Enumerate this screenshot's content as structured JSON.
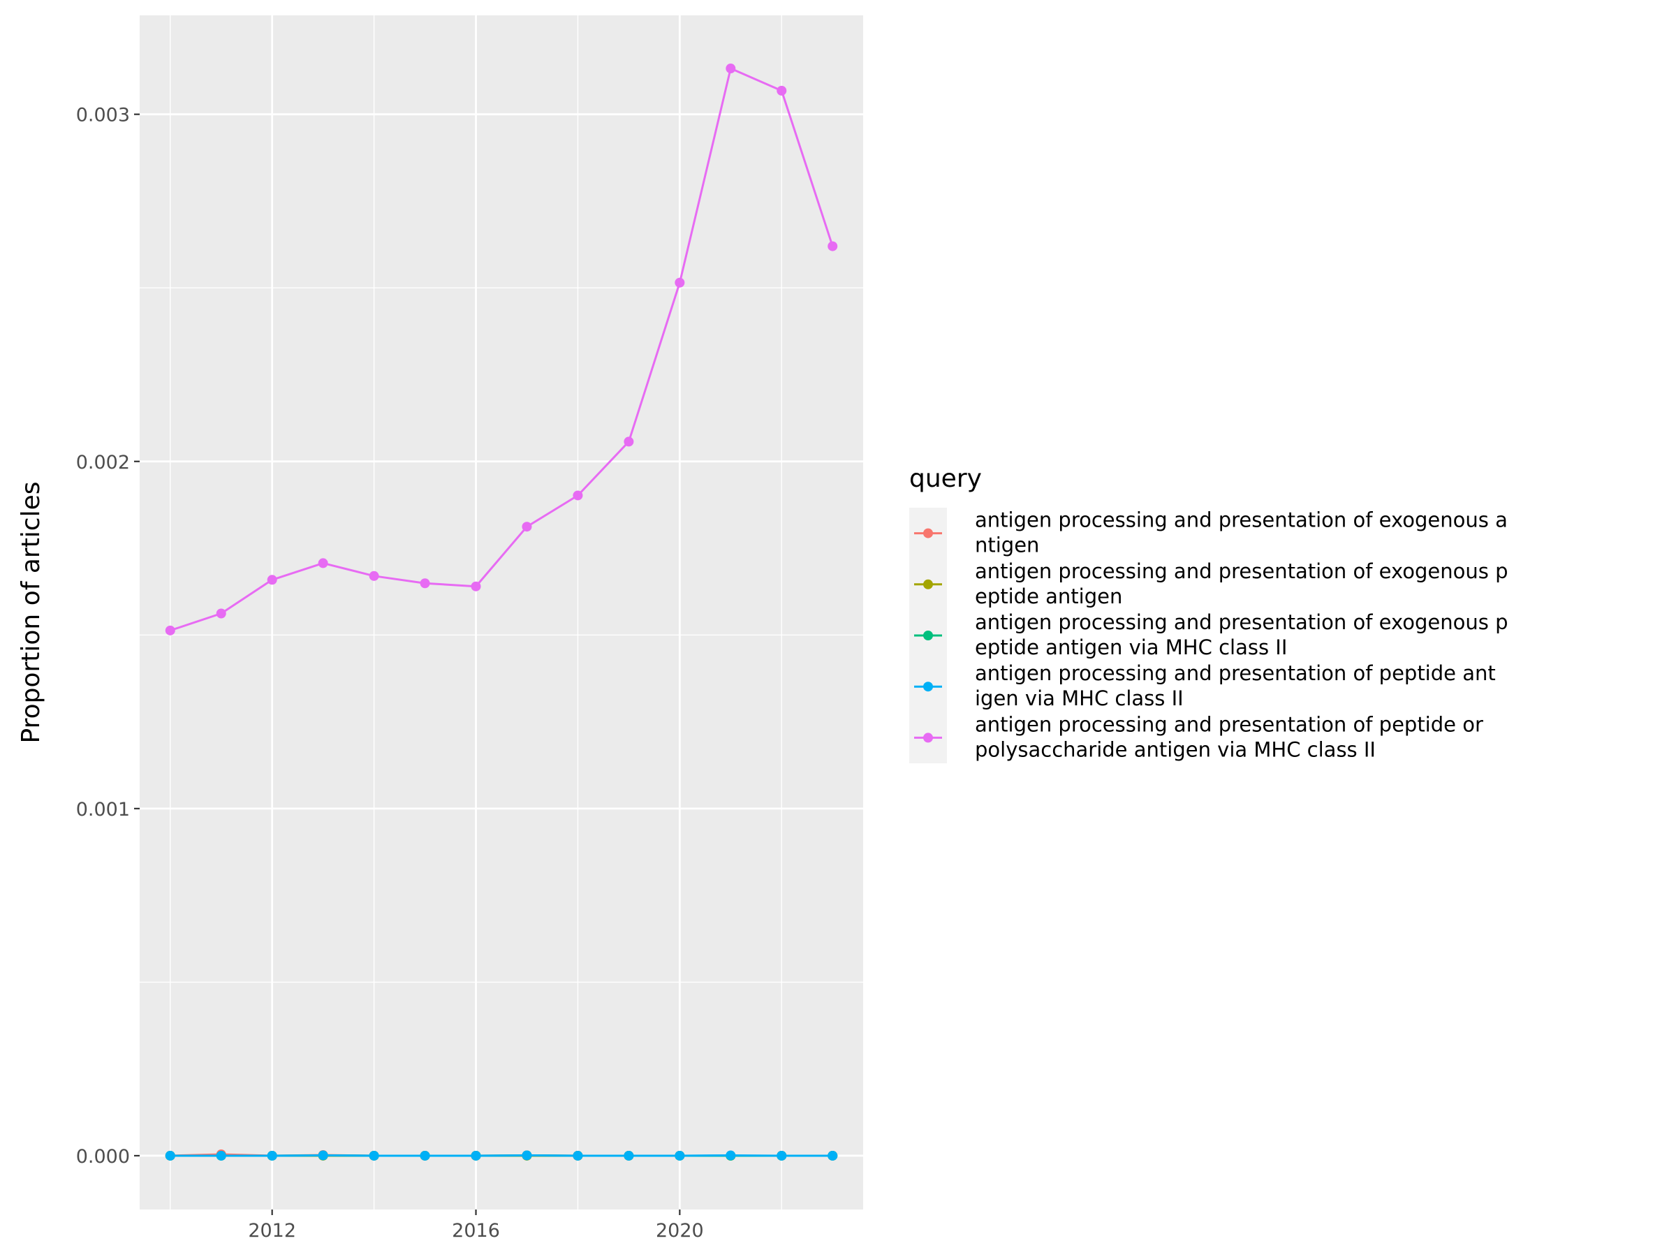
{
  "chart_data": {
    "type": "line",
    "title": "",
    "xlabel": "",
    "ylabel": "Proportion of articles",
    "xlim": [
      2009.4,
      2023.6
    ],
    "ylim": [
      -0.000155,
      0.003285
    ],
    "xticks": [
      2012,
      2016,
      2020
    ],
    "xtick_labels": [
      "2012",
      "2016",
      "2020"
    ],
    "yticks": [
      0.0,
      0.001,
      0.002,
      0.003
    ],
    "ytick_labels": [
      "0.000",
      "0.001",
      "0.002",
      "0.003"
    ],
    "grid": true,
    "legend": {
      "title": "query",
      "placement": "right"
    },
    "x": [
      2010,
      2011,
      2012,
      2013,
      2014,
      2015,
      2016,
      2017,
      2018,
      2019,
      2020,
      2021,
      2022,
      2023
    ],
    "series": [
      {
        "name": "antigen processing and presentation of exogenous antigen",
        "label_lines": [
          "antigen processing and presentation of exogenous a",
          "ntigen"
        ],
        "color": "#F8766D",
        "values": [
          0.0,
          4e-06,
          0.0,
          2e-06,
          0.0,
          0.0,
          0.0,
          1e-06,
          0.0,
          0.0,
          0.0,
          0.0,
          0.0,
          0.0
        ]
      },
      {
        "name": "antigen processing and presentation of exogenous peptide antigen",
        "label_lines": [
          "antigen processing and presentation of exogenous p",
          "eptide antigen"
        ],
        "color": "#A3A500",
        "values": [
          0.0,
          0.0,
          0.0,
          0.0,
          0.0,
          0.0,
          0.0,
          0.0,
          0.0,
          0.0,
          0.0,
          0.0,
          0.0,
          0.0
        ]
      },
      {
        "name": "antigen processing and presentation of exogenous peptide antigen via MHC class II",
        "label_lines": [
          "antigen processing and presentation of exogenous p",
          "eptide antigen via MHC class II"
        ],
        "color": "#00BF7D",
        "values": [
          0.0,
          0.0,
          0.0,
          1e-06,
          0.0,
          0.0,
          0.0,
          1e-06,
          0.0,
          0.0,
          0.0,
          0.0,
          0.0,
          0.0
        ]
      },
      {
        "name": "antigen processing and presentation of peptide antigen via MHC class II",
        "label_lines": [
          "antigen processing and presentation of peptide ant",
          "igen via MHC class II"
        ],
        "color": "#00B0F6",
        "values": [
          0.0,
          0.0,
          0.0,
          1e-06,
          0.0,
          0.0,
          0.0,
          1e-06,
          0.0,
          0.0,
          0.0,
          1e-06,
          0.0,
          0.0
        ]
      },
      {
        "name": "antigen processing and presentation of peptide or polysaccharide antigen via MHC class II",
        "label_lines": [
          "antigen processing and presentation of peptide or",
          "polysaccharide antigen via MHC class II"
        ],
        "color": "#E76BF3",
        "values": [
          0.001513,
          0.001562,
          0.001659,
          0.001707,
          0.00167,
          0.001649,
          0.00164,
          0.001812,
          0.001902,
          0.002057,
          0.002515,
          0.003132,
          0.003068,
          0.00262
        ]
      }
    ]
  }
}
